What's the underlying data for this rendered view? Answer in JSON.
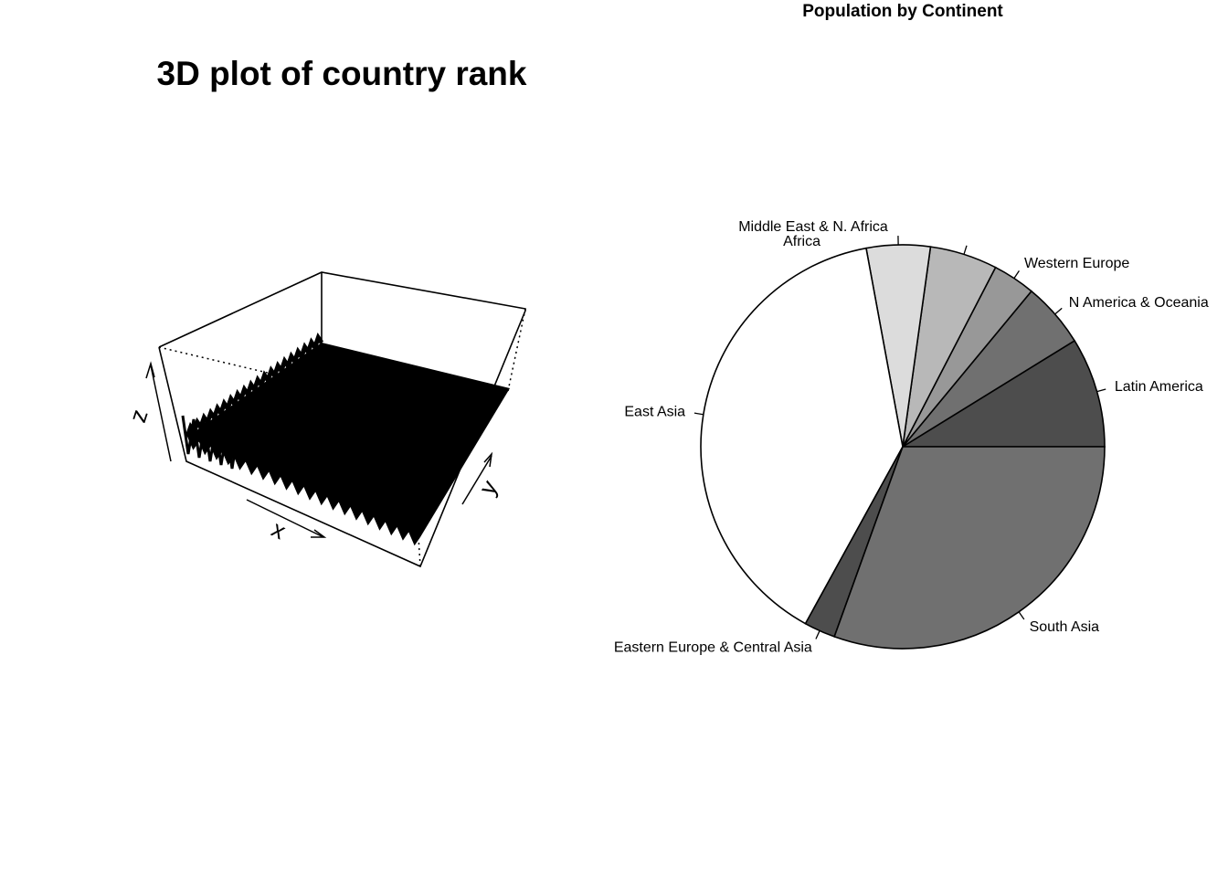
{
  "chart_data": [
    {
      "type": "surface3d",
      "title": "3D plot of country rank",
      "axes": {
        "x": "x",
        "y": "y",
        "z": "z"
      },
      "box": true,
      "color": "#000000"
    },
    {
      "type": "pie",
      "title": "Population by Continent",
      "slices": [
        {
          "label": "Latin America",
          "value": 8.8,
          "color": "#4d4d4d"
        },
        {
          "label": "N America & Oceania",
          "value": 5.2,
          "color": "#707070"
        },
        {
          "label": "Western Europe",
          "value": 3.4,
          "color": "#989898"
        },
        {
          "label": "Middle East & N. Africa",
          "value": 5.4,
          "color": "#b8b8b8"
        },
        {
          "label": "Africa",
          "value": 5.1,
          "color": "#dcdcdc"
        },
        {
          "label": "East Asia",
          "value": 39.1,
          "color": "#ffffff"
        },
        {
          "label": "Eastern Europe & Central Asia",
          "value": 2.5,
          "color": "#4d4d4d"
        },
        {
          "label": "South Asia",
          "value": 30.5,
          "color": "#707070"
        }
      ]
    }
  ]
}
